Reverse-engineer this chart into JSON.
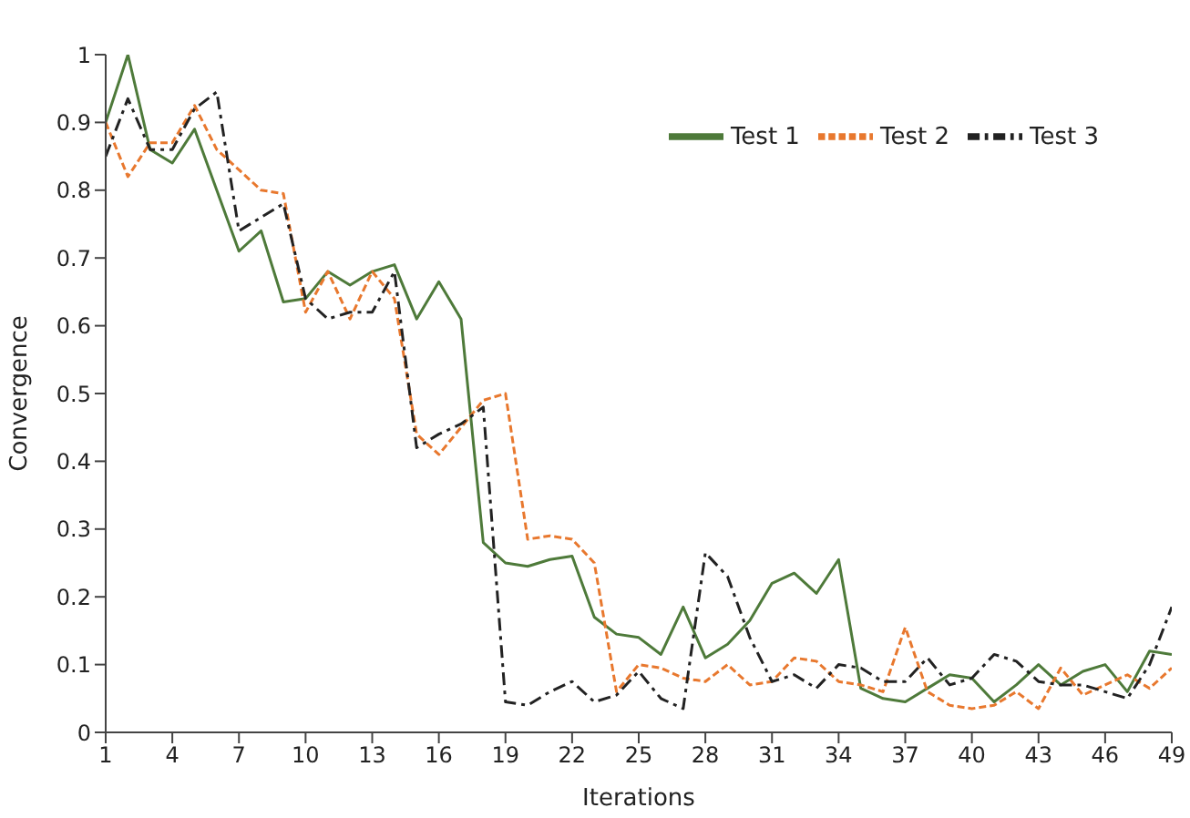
{
  "chart_data": {
    "type": "line",
    "xlabel": "Iterations",
    "ylabel": "Convergence",
    "x": [
      1,
      2,
      3,
      4,
      5,
      6,
      7,
      8,
      9,
      10,
      11,
      12,
      13,
      14,
      15,
      16,
      17,
      18,
      19,
      20,
      21,
      22,
      23,
      24,
      25,
      26,
      27,
      28,
      29,
      30,
      31,
      32,
      33,
      34,
      35,
      36,
      37,
      38,
      39,
      40,
      41,
      42,
      43,
      44,
      45,
      46,
      47,
      48,
      49
    ],
    "series": [
      {
        "name": "Test 1",
        "color": "#4e7a3a",
        "line_style": "solid",
        "values": [
          0.9,
          1.0,
          0.86,
          0.84,
          0.89,
          0.8,
          0.71,
          0.74,
          0.635,
          0.64,
          0.68,
          0.66,
          0.68,
          0.69,
          0.61,
          0.665,
          0.61,
          0.28,
          0.25,
          0.245,
          0.255,
          0.26,
          0.17,
          0.145,
          0.14,
          0.115,
          0.185,
          0.11,
          0.13,
          0.165,
          0.22,
          0.235,
          0.205,
          0.255,
          0.065,
          0.05,
          0.045,
          0.065,
          0.085,
          0.08,
          0.045,
          0.07,
          0.1,
          0.07,
          0.09,
          0.1,
          0.06,
          0.12,
          0.115
        ]
      },
      {
        "name": "Test 2",
        "color": "#e8782e",
        "line_style": "dashed",
        "values": [
          0.9,
          0.82,
          0.87,
          0.87,
          0.925,
          0.86,
          0.83,
          0.8,
          0.795,
          0.62,
          0.68,
          0.61,
          0.68,
          0.64,
          0.44,
          0.41,
          0.45,
          0.49,
          0.5,
          0.285,
          0.29,
          0.285,
          0.25,
          0.06,
          0.1,
          0.095,
          0.08,
          0.075,
          0.1,
          0.07,
          0.075,
          0.11,
          0.105,
          0.075,
          0.07,
          0.06,
          0.155,
          0.06,
          0.04,
          0.035,
          0.04,
          0.06,
          0.035,
          0.095,
          0.055,
          0.07,
          0.085,
          0.065,
          0.095
        ]
      },
      {
        "name": "Test 3",
        "color": "#222222",
        "line_style": "dashdot",
        "values": [
          0.85,
          0.935,
          0.86,
          0.86,
          0.92,
          0.945,
          0.74,
          0.76,
          0.78,
          0.64,
          0.61,
          0.62,
          0.62,
          0.68,
          0.42,
          0.44,
          0.455,
          0.48,
          0.045,
          0.04,
          0.06,
          0.075,
          0.045,
          0.055,
          0.09,
          0.05,
          0.035,
          0.265,
          0.23,
          0.14,
          0.075,
          0.085,
          0.065,
          0.1,
          0.095,
          0.075,
          0.075,
          0.11,
          0.07,
          0.08,
          0.115,
          0.105,
          0.075,
          0.07,
          0.07,
          0.06,
          0.05,
          0.1,
          0.185
        ]
      }
    ],
    "xlim": [
      1,
      49
    ],
    "xticks": [
      1,
      4,
      7,
      10,
      13,
      16,
      19,
      22,
      25,
      28,
      31,
      34,
      37,
      40,
      43,
      46,
      49
    ],
    "ylim": [
      0,
      1
    ],
    "yticks": [
      0,
      0.1,
      0.2,
      0.3,
      0.4,
      0.5,
      0.6,
      0.7,
      0.8,
      0.9,
      1
    ],
    "grid": false,
    "legend": "top right",
    "marker": "none"
  }
}
